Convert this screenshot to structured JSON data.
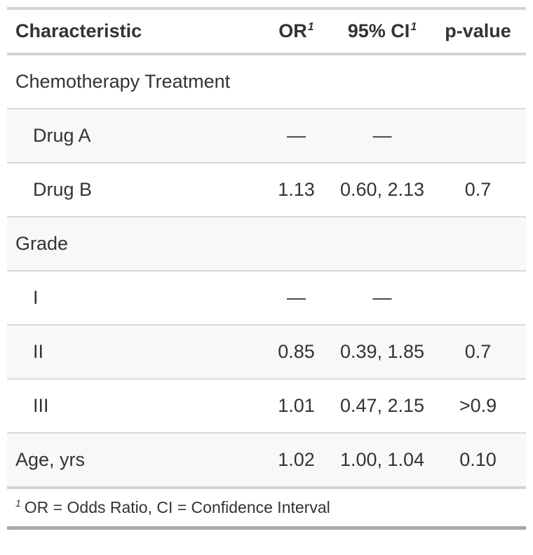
{
  "chart_data": {
    "type": "table",
    "columns": [
      {
        "label": "Characteristic",
        "sup": ""
      },
      {
        "label": "OR",
        "sup": "1"
      },
      {
        "label": "95% CI",
        "sup": "1"
      },
      {
        "label": "p-value",
        "sup": ""
      }
    ],
    "rows": [
      {
        "label": "Chemotherapy Treatment",
        "or": "",
        "ci": "",
        "p": "",
        "indent": false,
        "stripe": false
      },
      {
        "label": "Drug A",
        "or": "—",
        "ci": "—",
        "p": "",
        "indent": true,
        "stripe": true
      },
      {
        "label": "Drug B",
        "or": "1.13",
        "ci": "0.60, 2.13",
        "p": "0.7",
        "indent": true,
        "stripe": false
      },
      {
        "label": "Grade",
        "or": "",
        "ci": "",
        "p": "",
        "indent": false,
        "stripe": true
      },
      {
        "label": "I",
        "or": "—",
        "ci": "—",
        "p": "",
        "indent": true,
        "stripe": false
      },
      {
        "label": "II",
        "or": "0.85",
        "ci": "0.39, 1.85",
        "p": "0.7",
        "indent": true,
        "stripe": true
      },
      {
        "label": "III",
        "or": "1.01",
        "ci": "0.47, 2.15",
        "p": ">0.9",
        "indent": true,
        "stripe": false
      },
      {
        "label": "Age, yrs",
        "or": "1.02",
        "ci": "1.00, 1.04",
        "p": "0.10",
        "indent": false,
        "stripe": true
      }
    ],
    "footnote": {
      "marker": "1",
      "text": "OR = Odds Ratio, CI = Confidence Interval"
    }
  },
  "colors": {
    "text": "#333333",
    "stripe_row": "#f8f8f8",
    "row_divider": "#d9d9d9",
    "section_border": "#d3d3d3",
    "bottom_border": "#a9a9a9",
    "background": "#ffffff"
  }
}
